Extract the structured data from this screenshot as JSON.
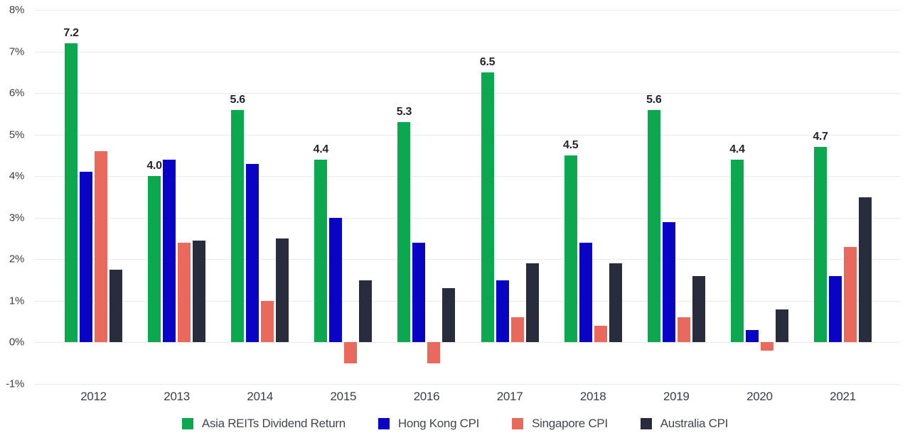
{
  "chart_data": {
    "type": "bar",
    "title": "",
    "xlabel": "",
    "ylabel": "",
    "categories": [
      "2012",
      "2013",
      "2014",
      "2015",
      "2016",
      "2017",
      "2018",
      "2019",
      "2020",
      "2021"
    ],
    "series": [
      {
        "name": "Asia REITs Dividend Return",
        "color": "#0ba84f",
        "values": [
          7.2,
          4.0,
          5.6,
          4.4,
          5.3,
          6.5,
          4.5,
          5.6,
          4.4,
          4.7
        ],
        "data_labels": [
          "7.2",
          "4.0",
          "5.6",
          "4.4",
          "5.3",
          "6.5",
          "4.5",
          "5.6",
          "4.4",
          "4.7"
        ]
      },
      {
        "name": "Hong Kong CPI",
        "color": "#0903c6",
        "values": [
          4.1,
          4.4,
          4.3,
          3.0,
          2.4,
          1.5,
          2.4,
          2.9,
          0.3,
          1.6
        ]
      },
      {
        "name": "Singapore CPI",
        "color": "#e96a5c",
        "values": [
          4.6,
          2.4,
          1.0,
          -0.5,
          -0.5,
          0.6,
          0.4,
          0.6,
          -0.2,
          2.3
        ]
      },
      {
        "name": "Australia CPI",
        "color": "#282c3c",
        "values": [
          1.75,
          2.45,
          2.5,
          1.5,
          1.3,
          1.9,
          1.9,
          1.6,
          0.8,
          3.5
        ]
      }
    ],
    "y_axis": {
      "min": -1,
      "max": 8,
      "tick_step": 1,
      "tick_labels": [
        "8%",
        "7%",
        "6%",
        "5%",
        "4%",
        "3%",
        "2%",
        "1%",
        "0%",
        "-1%"
      ]
    },
    "grid": "horizontal",
    "legend_position": "bottom"
  }
}
